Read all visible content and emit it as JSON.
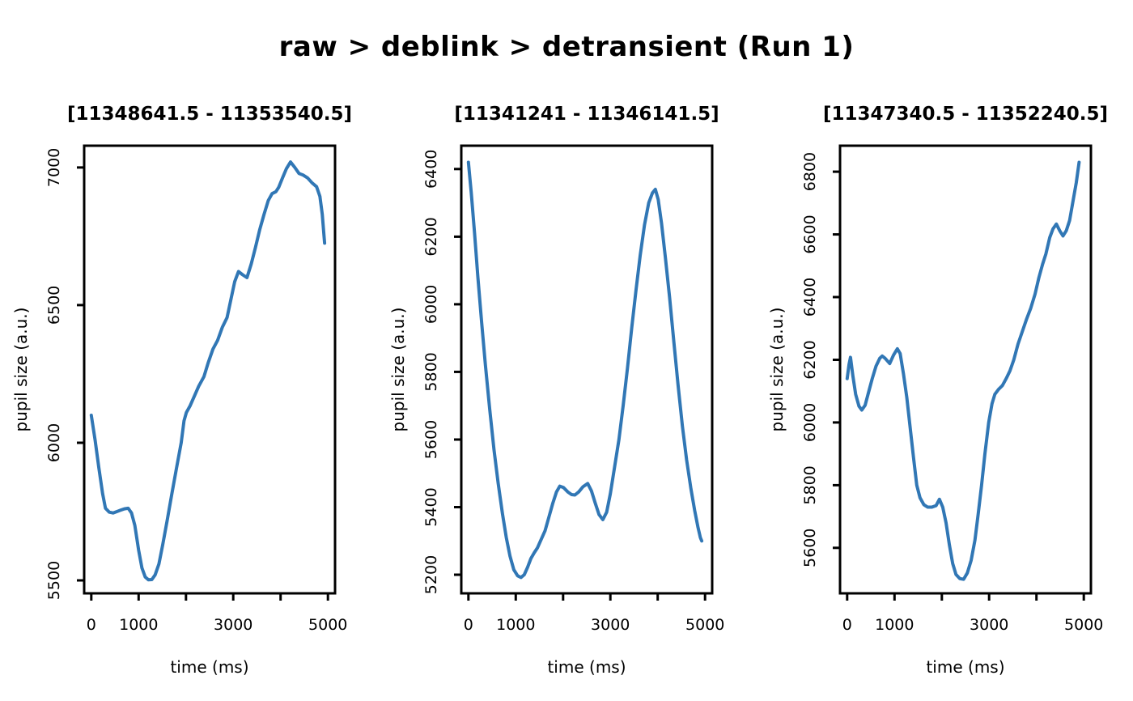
{
  "title": "raw > deblink > detransient (Run 1)",
  "chart_data": {
    "type": "line",
    "layout": "1 row x 3 columns",
    "grid": false,
    "legend": null,
    "line_color": "#3177b5",
    "background": "#ffffff",
    "panels": [
      {
        "title": "[11348641.5 - 11353540.5]",
        "xlabel": "time (ms)",
        "ylabel": "pupil size (a.u.)",
        "xlim": [
          -150,
          5150
        ],
        "ylim": [
          5453,
          7079
        ],
        "x_ticks": [
          0,
          1000,
          2000,
          3000,
          4000,
          5000
        ],
        "x_tick_labels": [
          "0",
          "1000",
          "",
          "3000",
          "",
          "5000"
        ],
        "y_ticks": [
          5500,
          6000,
          6500,
          7000
        ],
        "points": [
          [
            0,
            6100
          ],
          [
            80,
            6010
          ],
          [
            160,
            5910
          ],
          [
            240,
            5815
          ],
          [
            300,
            5762
          ],
          [
            380,
            5748
          ],
          [
            460,
            5745
          ],
          [
            540,
            5750
          ],
          [
            620,
            5755
          ],
          [
            700,
            5760
          ],
          [
            780,
            5762
          ],
          [
            850,
            5745
          ],
          [
            920,
            5700
          ],
          [
            1000,
            5610
          ],
          [
            1070,
            5545
          ],
          [
            1140,
            5512
          ],
          [
            1210,
            5502
          ],
          [
            1280,
            5503
          ],
          [
            1350,
            5520
          ],
          [
            1430,
            5560
          ],
          [
            1510,
            5630
          ],
          [
            1600,
            5715
          ],
          [
            1700,
            5812
          ],
          [
            1800,
            5908
          ],
          [
            1900,
            6000
          ],
          [
            1960,
            6080
          ],
          [
            2010,
            6110
          ],
          [
            2090,
            6135
          ],
          [
            2180,
            6170
          ],
          [
            2270,
            6205
          ],
          [
            2380,
            6240
          ],
          [
            2470,
            6290
          ],
          [
            2570,
            6340
          ],
          [
            2670,
            6372
          ],
          [
            2770,
            6420
          ],
          [
            2870,
            6455
          ],
          [
            2950,
            6520
          ],
          [
            3030,
            6585
          ],
          [
            3110,
            6622
          ],
          [
            3200,
            6610
          ],
          [
            3290,
            6600
          ],
          [
            3380,
            6650
          ],
          [
            3470,
            6710
          ],
          [
            3560,
            6775
          ],
          [
            3650,
            6830
          ],
          [
            3740,
            6880
          ],
          [
            3820,
            6905
          ],
          [
            3900,
            6912
          ],
          [
            3960,
            6928
          ],
          [
            4040,
            6962
          ],
          [
            4120,
            6995
          ],
          [
            4210,
            7020
          ],
          [
            4300,
            7000
          ],
          [
            4390,
            6978
          ],
          [
            4480,
            6972
          ],
          [
            4570,
            6962
          ],
          [
            4660,
            6945
          ],
          [
            4760,
            6930
          ],
          [
            4830,
            6895
          ],
          [
            4880,
            6830
          ],
          [
            4930,
            6725
          ]
        ]
      },
      {
        "title": "[11341241 - 11346141.5]",
        "xlabel": "time (ms)",
        "ylabel": "pupil size (a.u.)",
        "xlim": [
          -150,
          5150
        ],
        "ylim": [
          5145,
          6469
        ],
        "x_ticks": [
          0,
          1000,
          2000,
          3000,
          4000,
          5000
        ],
        "x_tick_labels": [
          "0",
          "1000",
          "",
          "3000",
          "",
          "5000"
        ],
        "y_ticks": [
          5200,
          5400,
          5600,
          5800,
          6000,
          6200,
          6400
        ],
        "points": [
          [
            0,
            6420
          ],
          [
            60,
            6330
          ],
          [
            130,
            6210
          ],
          [
            200,
            6080
          ],
          [
            280,
            5945
          ],
          [
            360,
            5820
          ],
          [
            450,
            5690
          ],
          [
            540,
            5570
          ],
          [
            630,
            5470
          ],
          [
            720,
            5380
          ],
          [
            800,
            5310
          ],
          [
            880,
            5255
          ],
          [
            960,
            5215
          ],
          [
            1040,
            5197
          ],
          [
            1110,
            5192
          ],
          [
            1180,
            5200
          ],
          [
            1250,
            5222
          ],
          [
            1320,
            5248
          ],
          [
            1390,
            5265
          ],
          [
            1460,
            5280
          ],
          [
            1540,
            5305
          ],
          [
            1620,
            5330
          ],
          [
            1700,
            5370
          ],
          [
            1780,
            5410
          ],
          [
            1860,
            5445
          ],
          [
            1930,
            5462
          ],
          [
            2010,
            5458
          ],
          [
            2100,
            5445
          ],
          [
            2180,
            5437
          ],
          [
            2250,
            5436
          ],
          [
            2330,
            5445
          ],
          [
            2420,
            5460
          ],
          [
            2520,
            5470
          ],
          [
            2600,
            5448
          ],
          [
            2680,
            5412
          ],
          [
            2760,
            5378
          ],
          [
            2840,
            5363
          ],
          [
            2920,
            5385
          ],
          [
            3000,
            5440
          ],
          [
            3090,
            5520
          ],
          [
            3180,
            5600
          ],
          [
            3270,
            5700
          ],
          [
            3360,
            5810
          ],
          [
            3450,
            5930
          ],
          [
            3540,
            6040
          ],
          [
            3630,
            6145
          ],
          [
            3720,
            6235
          ],
          [
            3810,
            6300
          ],
          [
            3890,
            6330
          ],
          [
            3950,
            6340
          ],
          [
            4010,
            6310
          ],
          [
            4080,
            6240
          ],
          [
            4160,
            6140
          ],
          [
            4250,
            6020
          ],
          [
            4340,
            5890
          ],
          [
            4430,
            5760
          ],
          [
            4520,
            5640
          ],
          [
            4610,
            5540
          ],
          [
            4700,
            5455
          ],
          [
            4780,
            5390
          ],
          [
            4850,
            5340
          ],
          [
            4900,
            5310
          ],
          [
            4930,
            5300
          ]
        ]
      },
      {
        "title": "[11347340.5 - 11352240.5]",
        "xlabel": "time (ms)",
        "ylabel": "pupil size (a.u.)",
        "xlim": [
          -150,
          5150
        ],
        "ylim": [
          5455,
          6883
        ],
        "x_ticks": [
          0,
          1000,
          2000,
          3000,
          4000,
          5000
        ],
        "x_tick_labels": [
          "0",
          "1000",
          "",
          "3000",
          "",
          "5000"
        ],
        "y_ticks": [
          5600,
          5800,
          6000,
          6200,
          6400,
          6600,
          6800
        ],
        "points": [
          [
            0,
            6140
          ],
          [
            40,
            6185
          ],
          [
            70,
            6208
          ],
          [
            120,
            6150
          ],
          [
            180,
            6090
          ],
          [
            250,
            6052
          ],
          [
            310,
            6040
          ],
          [
            380,
            6055
          ],
          [
            450,
            6095
          ],
          [
            530,
            6140
          ],
          [
            610,
            6180
          ],
          [
            690,
            6205
          ],
          [
            740,
            6212
          ],
          [
            800,
            6205
          ],
          [
            900,
            6188
          ],
          [
            980,
            6215
          ],
          [
            1060,
            6235
          ],
          [
            1120,
            6220
          ],
          [
            1190,
            6155
          ],
          [
            1260,
            6080
          ],
          [
            1330,
            5985
          ],
          [
            1400,
            5890
          ],
          [
            1470,
            5800
          ],
          [
            1540,
            5760
          ],
          [
            1620,
            5738
          ],
          [
            1700,
            5730
          ],
          [
            1790,
            5730
          ],
          [
            1880,
            5735
          ],
          [
            1950,
            5755
          ],
          [
            2020,
            5730
          ],
          [
            2090,
            5680
          ],
          [
            2160,
            5610
          ],
          [
            2230,
            5550
          ],
          [
            2300,
            5515
          ],
          [
            2380,
            5502
          ],
          [
            2460,
            5500
          ],
          [
            2540,
            5520
          ],
          [
            2620,
            5560
          ],
          [
            2700,
            5625
          ],
          [
            2770,
            5710
          ],
          [
            2840,
            5800
          ],
          [
            2910,
            5900
          ],
          [
            2990,
            6000
          ],
          [
            3060,
            6060
          ],
          [
            3120,
            6090
          ],
          [
            3200,
            6106
          ],
          [
            3280,
            6118
          ],
          [
            3360,
            6140
          ],
          [
            3440,
            6165
          ],
          [
            3520,
            6200
          ],
          [
            3610,
            6250
          ],
          [
            3700,
            6290
          ],
          [
            3790,
            6330
          ],
          [
            3880,
            6365
          ],
          [
            3970,
            6410
          ],
          [
            4050,
            6462
          ],
          [
            4130,
            6505
          ],
          [
            4200,
            6538
          ],
          [
            4280,
            6590
          ],
          [
            4350,
            6618
          ],
          [
            4420,
            6633
          ],
          [
            4490,
            6612
          ],
          [
            4560,
            6595
          ],
          [
            4630,
            6612
          ],
          [
            4700,
            6645
          ],
          [
            4770,
            6705
          ],
          [
            4840,
            6765
          ],
          [
            4900,
            6830
          ]
        ]
      }
    ]
  }
}
